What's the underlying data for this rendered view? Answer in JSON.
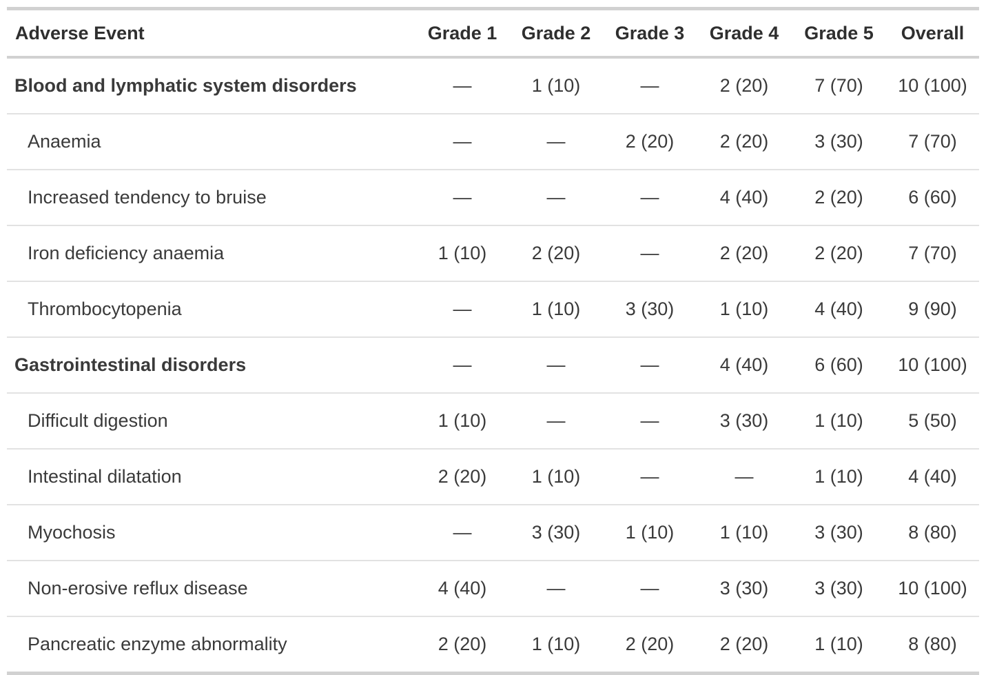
{
  "colors": {
    "background": "#ffffff",
    "border_heavy": "#d1d1d1",
    "border_light": "#e2e2e2",
    "text_regular": "#3a3a3a",
    "text_bold": "#2f2f2f"
  },
  "empty_cell_glyph": "—",
  "chart_data": {
    "type": "table",
    "columns": [
      "Adverse Event",
      "Grade 1",
      "Grade 2",
      "Grade 3",
      "Grade 4",
      "Grade 5",
      "Overall"
    ],
    "rows": [
      {
        "label": "Blood and lymphatic system disorders",
        "group": true,
        "values": [
          "—",
          "1 (10)",
          "—",
          "2 (20)",
          "7 (70)",
          "10 (100)"
        ]
      },
      {
        "label": "Anaemia",
        "group": false,
        "values": [
          "—",
          "—",
          "2 (20)",
          "2 (20)",
          "3 (30)",
          "7 (70)"
        ]
      },
      {
        "label": "Increased tendency to bruise",
        "group": false,
        "values": [
          "—",
          "—",
          "—",
          "4 (40)",
          "2 (20)",
          "6 (60)"
        ]
      },
      {
        "label": "Iron deficiency anaemia",
        "group": false,
        "values": [
          "1 (10)",
          "2 (20)",
          "—",
          "2 (20)",
          "2 (20)",
          "7 (70)"
        ]
      },
      {
        "label": "Thrombocytopenia",
        "group": false,
        "values": [
          "—",
          "1 (10)",
          "3 (30)",
          "1 (10)",
          "4 (40)",
          "9 (90)"
        ]
      },
      {
        "label": "Gastrointestinal disorders",
        "group": true,
        "values": [
          "—",
          "—",
          "—",
          "4 (40)",
          "6 (60)",
          "10 (100)"
        ]
      },
      {
        "label": "Difficult digestion",
        "group": false,
        "values": [
          "1 (10)",
          "—",
          "—",
          "3 (30)",
          "1 (10)",
          "5 (50)"
        ]
      },
      {
        "label": "Intestinal dilatation",
        "group": false,
        "values": [
          "2 (20)",
          "1 (10)",
          "—",
          "—",
          "1 (10)",
          "4 (40)"
        ]
      },
      {
        "label": "Myochosis",
        "group": false,
        "values": [
          "—",
          "3 (30)",
          "1 (10)",
          "1 (10)",
          "3 (30)",
          "8 (80)"
        ]
      },
      {
        "label": "Non-erosive reflux disease",
        "group": false,
        "values": [
          "4 (40)",
          "—",
          "—",
          "3 (30)",
          "3 (30)",
          "10 (100)"
        ]
      },
      {
        "label": "Pancreatic enzyme abnormality",
        "group": false,
        "values": [
          "2 (20)",
          "1 (10)",
          "2 (20)",
          "2 (20)",
          "1 (10)",
          "8 (80)"
        ]
      }
    ]
  }
}
